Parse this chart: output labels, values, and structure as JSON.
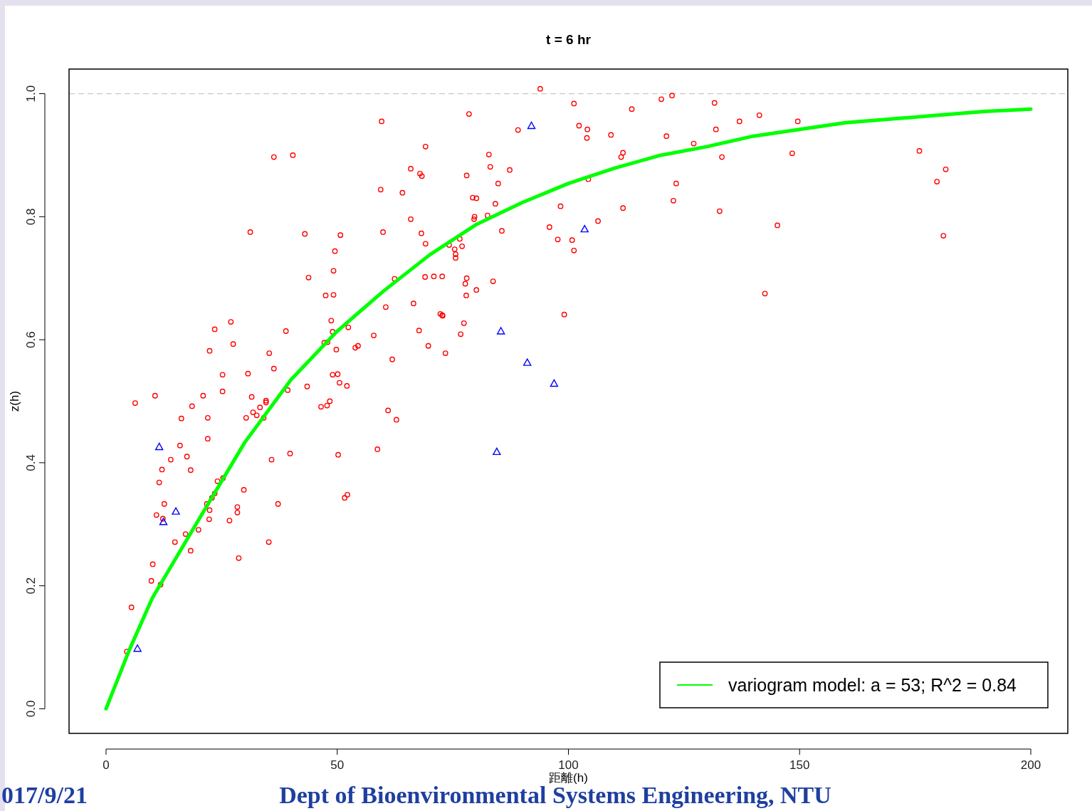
{
  "chart_data": {
    "type": "scatter",
    "title": "t = 6 hr",
    "xlabel": "距離(h)",
    "ylabel": "z(h)",
    "xlim": [
      -8,
      208
    ],
    "ylim": [
      -0.04,
      1.04
    ],
    "xticks": [
      0,
      50,
      100,
      150,
      200
    ],
    "yticks": [
      {
        "value": 0,
        "label": "0.0"
      },
      {
        "value": 0.2,
        "label": "0.2"
      },
      {
        "value": 0.4,
        "label": "0.4"
      },
      {
        "value": 0.6,
        "label": "0.6"
      },
      {
        "value": 0.8,
        "label": "0.8"
      },
      {
        "value": 1,
        "label": "1.0"
      }
    ],
    "grid": false,
    "legend": "bottom right",
    "ref_lines": [
      {
        "axis": "y",
        "value": 1,
        "color": "#c8c8c8",
        "line_style": "dashed"
      }
    ],
    "annotations": [
      "017/9/21",
      "Dept of Bioenvironmental Systems Engineering, NTU"
    ],
    "series": [
      {
        "color": "#ff0000",
        "marker": "circle",
        "x": [
          4.5,
          5.5,
          6.3,
          9.8,
          10.1,
          10.6,
          10.9,
          11.5,
          11.8,
          12.1,
          12.3,
          12.6,
          14.0,
          14.9,
          16.0,
          16.3,
          17.2,
          17.5,
          18.3,
          18.3,
          18.6,
          20.0,
          21.0,
          22.0,
          22.0,
          21.8,
          22.3,
          22.4,
          22.4,
          22.9,
          23.5,
          23.5,
          24.1,
          25.2,
          25.2,
          25.3,
          26.7,
          27.0,
          27.5,
          28.4,
          28.4,
          28.7,
          29.8,
          30.3,
          30.7,
          31.2,
          31.5,
          31.8,
          32.6,
          33.3,
          34.1,
          34.6,
          34.6,
          35.2,
          35.3,
          35.8,
          36.3,
          36.3,
          37.2,
          38.9,
          39.3,
          39.8,
          40.4,
          43.0,
          43.5,
          43.8,
          46.5,
          47.2,
          47.5,
          47.8,
          47.9,
          48.4,
          48.7,
          49.0,
          49.0,
          49.2,
          49.2,
          49.5,
          49.8,
          50.1,
          50.2,
          50.5,
          50.7,
          51.6,
          52.1,
          52.2,
          52.4,
          53.9,
          54.5,
          57.9,
          58.7,
          59.4,
          59.6,
          59.9,
          60.5,
          61.0,
          61.9,
          62.4,
          62.8,
          64.1,
          65.9,
          65.9,
          66.5,
          67.7,
          67.9,
          68.2,
          68.3,
          69.1,
          69.1,
          69.0,
          69.7,
          70.9,
          72.3,
          72.7,
          72.8,
          72.7,
          73.4,
          74.2,
          75.4,
          75.6,
          75.6,
          76.5,
          77.0,
          76.7,
          77.4,
          77.7,
          77.9,
          78.0,
          78.0,
          78.5,
          79.3,
          79.6,
          79.7,
          80.1,
          80.1,
          82.5,
          82.8,
          83.1,
          83.7,
          84.2,
          84.8,
          85.6,
          87.3,
          89.1,
          93.9,
          95.9,
          97.7,
          98.3,
          99.1,
          100.8,
          101.2,
          101.2,
          102.3,
          104.1,
          104.0,
          104.3,
          106.4,
          109.2,
          111.4,
          111.8,
          111.8,
          113.7,
          120.1,
          121.2,
          122.4,
          122.7,
          123.3,
          127.1,
          131.6,
          131.9,
          132.7,
          133.2,
          137.0,
          141.3,
          142.5,
          145.2,
          148.4,
          149.6,
          175.9,
          179.7,
          181.6,
          181.1
        ],
        "values": [
          0.093,
          0.165,
          0.497,
          0.208,
          0.235,
          0.509,
          0.315,
          0.368,
          0.202,
          0.389,
          0.309,
          0.333,
          0.405,
          0.271,
          0.428,
          0.472,
          0.284,
          0.41,
          0.388,
          0.257,
          0.492,
          0.291,
          0.509,
          0.473,
          0.439,
          0.333,
          0.308,
          0.323,
          0.582,
          0.343,
          0.617,
          0.35,
          0.37,
          0.543,
          0.516,
          0.375,
          0.306,
          0.629,
          0.593,
          0.319,
          0.328,
          0.245,
          0.356,
          0.473,
          0.545,
          0.775,
          0.507,
          0.482,
          0.477,
          0.49,
          0.473,
          0.498,
          0.501,
          0.271,
          0.578,
          0.405,
          0.553,
          0.897,
          0.333,
          0.614,
          0.518,
          0.415,
          0.9,
          0.772,
          0.524,
          0.701,
          0.491,
          0.595,
          0.672,
          0.493,
          0.596,
          0.5,
          0.631,
          0.543,
          0.613,
          0.673,
          0.712,
          0.744,
          0.584,
          0.544,
          0.413,
          0.53,
          0.77,
          0.343,
          0.525,
          0.348,
          0.62,
          0.587,
          0.59,
          0.607,
          0.422,
          0.844,
          0.955,
          0.775,
          0.653,
          0.485,
          0.568,
          0.699,
          0.47,
          0.839,
          0.878,
          0.796,
          0.659,
          0.615,
          0.87,
          0.773,
          0.866,
          0.914,
          0.756,
          0.702,
          0.59,
          0.703,
          0.642,
          0.64,
          0.639,
          0.703,
          0.578,
          0.754,
          0.747,
          0.739,
          0.733,
          0.764,
          0.752,
          0.609,
          0.627,
          0.691,
          0.672,
          0.7,
          0.867,
          0.967,
          0.831,
          0.796,
          0.8,
          0.83,
          0.681,
          0.802,
          0.901,
          0.881,
          0.695,
          0.821,
          0.854,
          0.777,
          0.876,
          0.941,
          1.008,
          0.783,
          0.763,
          0.817,
          0.641,
          0.762,
          0.745,
          0.984,
          0.948,
          0.942,
          0.928,
          0.861,
          0.793,
          0.933,
          0.897,
          0.904,
          0.814,
          0.975,
          0.991,
          0.931,
          0.997,
          0.826,
          0.854,
          0.919,
          0.985,
          0.942,
          0.809,
          0.897,
          0.955,
          0.965,
          0.675,
          0.786,
          0.903,
          0.955,
          0.907,
          0.857,
          0.877,
          0.769
        ]
      },
      {
        "color": "#0000ff",
        "marker": "triangle",
        "x": [
          6.8,
          11.5,
          12.4,
          15.1,
          85.4,
          84.5,
          91.1,
          92.0,
          96.9,
          103.5
        ],
        "values": [
          0.098,
          0.426,
          0.304,
          0.321,
          0.614,
          0.418,
          0.563,
          0.948,
          0.529,
          0.78
        ]
      },
      {
        "type": "line",
        "name": "variogram model: a = 53; R^2 = 0.84",
        "color": "#00ff00",
        "marker": "none",
        "line_style": "solid",
        "x": [
          0,
          5,
          10,
          20,
          30,
          40,
          50,
          60,
          70,
          80,
          90,
          100,
          110,
          120,
          130,
          140,
          150,
          160,
          170,
          180,
          190,
          200
        ],
        "values": [
          0,
          0.095,
          0.18,
          0.307,
          0.433,
          0.535,
          0.614,
          0.679,
          0.738,
          0.787,
          0.823,
          0.854,
          0.879,
          0.9,
          0.914,
          0.931,
          0.942,
          0.953,
          0.959,
          0.965,
          0.971,
          0.975
        ]
      }
    ]
  }
}
